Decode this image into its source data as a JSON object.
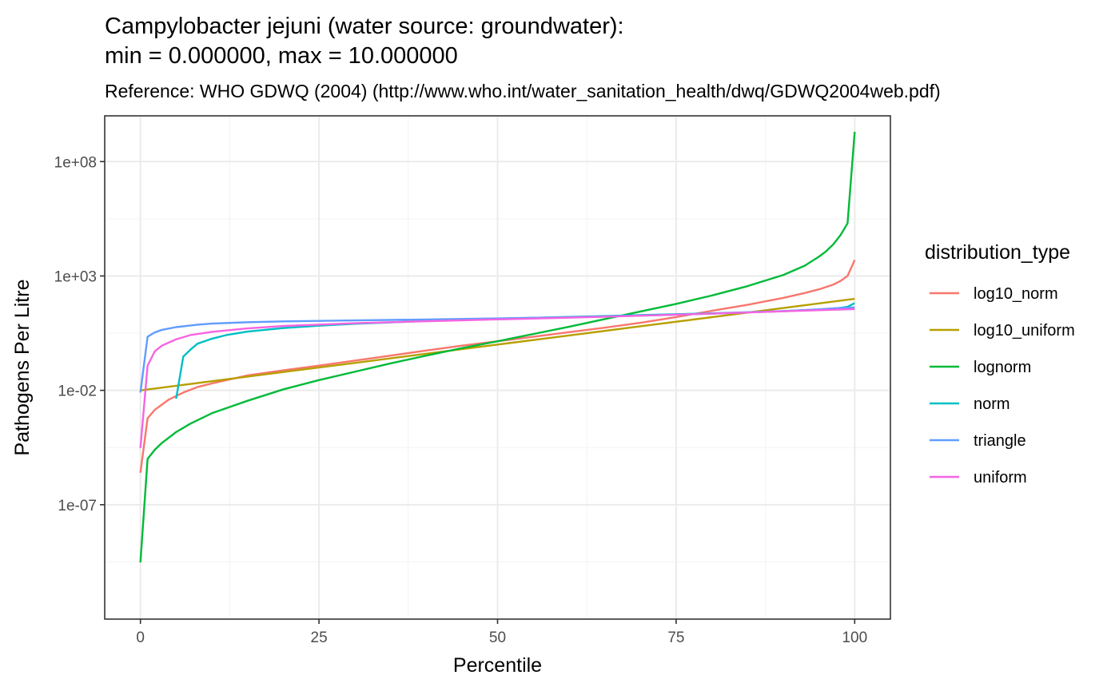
{
  "chart_data": {
    "type": "line",
    "title_lines": [
      "Campylobacter jejuni (water source: groundwater):",
      "min = 0.000000, max = 10.000000"
    ],
    "subtitle": "Reference: WHO GDWQ (2004) (http://www.who.int/water_sanitation_health/dwq/GDWQ2004web.pdf)",
    "xlabel": "Percentile",
    "ylabel": "Pathogens Per Litre",
    "x_scale": "linear",
    "y_scale": "log10",
    "xlim": [
      -5,
      105
    ],
    "ylim": [
      1e-12,
      10000000000.0
    ],
    "x_ticks": [
      {
        "value": 0,
        "label": "0"
      },
      {
        "value": 25,
        "label": "25"
      },
      {
        "value": 50,
        "label": "50"
      },
      {
        "value": 75,
        "label": "75"
      },
      {
        "value": 100,
        "label": "100"
      }
    ],
    "y_ticks": [
      {
        "value": 1e-07,
        "label": "1e-07"
      },
      {
        "value": 0.01,
        "label": "1e-02"
      },
      {
        "value": 1000.0,
        "label": "1e+03"
      },
      {
        "value": 100000000.0,
        "label": "1e+08"
      }
    ],
    "grid": true,
    "legend": {
      "title": "distribution_type",
      "position": "right"
    },
    "series": [
      {
        "name": "log10_norm",
        "color": "#F8766D",
        "points": [
          [
            0,
            2.5e-06
          ],
          [
            1,
            0.0006
          ],
          [
            2,
            0.0014
          ],
          [
            4,
            0.004
          ],
          [
            6,
            0.008
          ],
          [
            8,
            0.014
          ],
          [
            10,
            0.02
          ],
          [
            15,
            0.045
          ],
          [
            20,
            0.075
          ],
          [
            25,
            0.12
          ],
          [
            30,
            0.2
          ],
          [
            35,
            0.33
          ],
          [
            40,
            0.55
          ],
          [
            45,
            0.9
          ],
          [
            50,
            1.4
          ],
          [
            55,
            2.2
          ],
          [
            60,
            3.5
          ],
          [
            65,
            5.5
          ],
          [
            70,
            9
          ],
          [
            75,
            16
          ],
          [
            80,
            30
          ],
          [
            85,
            55
          ],
          [
            90,
            110
          ],
          [
            93,
            180
          ],
          [
            95,
            260
          ],
          [
            96,
            330
          ],
          [
            97,
            420
          ],
          [
            98,
            600
          ],
          [
            99,
            1000
          ],
          [
            100,
            5000
          ]
        ]
      },
      {
        "name": "log10_uniform",
        "color": "#B79F00",
        "points": [
          [
            0,
            0.01
          ],
          [
            5,
            0.0158
          ],
          [
            10,
            0.0251
          ],
          [
            20,
            0.0631
          ],
          [
            30,
            0.158
          ],
          [
            40,
            0.398
          ],
          [
            50,
            1
          ],
          [
            60,
            2.51
          ],
          [
            70,
            6.31
          ],
          [
            80,
            15.8
          ],
          [
            90,
            39.8
          ],
          [
            95,
            63.1
          ],
          [
            100,
            100
          ]
        ]
      },
      {
        "name": "lognorm",
        "color": "#00BA38",
        "points": [
          [
            0,
            3e-10
          ],
          [
            1,
            1e-05
          ],
          [
            2,
            2.5e-05
          ],
          [
            3,
            5e-05
          ],
          [
            5,
            0.00015
          ],
          [
            7,
            0.00035
          ],
          [
            10,
            0.001
          ],
          [
            15,
            0.0035
          ],
          [
            20,
            0.011
          ],
          [
            25,
            0.028
          ],
          [
            30,
            0.065
          ],
          [
            35,
            0.15
          ],
          [
            40,
            0.33
          ],
          [
            45,
            0.7
          ],
          [
            50,
            1.4
          ],
          [
            55,
            2.9
          ],
          [
            60,
            6
          ],
          [
            65,
            13
          ],
          [
            70,
            28
          ],
          [
            75,
            60
          ],
          [
            80,
            140
          ],
          [
            85,
            360
          ],
          [
            90,
            1100
          ],
          [
            93,
            2800
          ],
          [
            95,
            7000
          ],
          [
            96,
            12000
          ],
          [
            97,
            24000
          ],
          [
            98,
            60000
          ],
          [
            99,
            200000
          ],
          [
            100,
            2000000000.0
          ]
        ]
      },
      {
        "name": "norm",
        "color": "#00BFC4",
        "points": [
          [
            5,
            0.0043
          ],
          [
            6,
            0.3
          ],
          [
            7,
            0.6
          ],
          [
            8,
            1.1
          ],
          [
            10,
            1.8
          ],
          [
            12,
            2.6
          ],
          [
            15,
            3.7
          ],
          [
            20,
            5.3
          ],
          [
            25,
            6.7
          ],
          [
            30,
            8.1
          ],
          [
            40,
            10.8
          ],
          [
            50,
            13.4
          ],
          [
            60,
            16.2
          ],
          [
            70,
            19.5
          ],
          [
            80,
            23.4
          ],
          [
            90,
            29
          ],
          [
            95,
            34
          ],
          [
            98,
            40
          ],
          [
            99,
            45
          ],
          [
            100,
            65
          ]
        ]
      },
      {
        "name": "triangle",
        "color": "#619CFF",
        "points": [
          [
            0,
            0.008
          ],
          [
            1,
            2.2
          ],
          [
            2,
            3.4
          ],
          [
            3,
            4.4
          ],
          [
            5,
            5.8
          ],
          [
            8,
            7.4
          ],
          [
            10,
            8.3
          ],
          [
            15,
            9.5
          ],
          [
            20,
            10.3
          ],
          [
            30,
            11.4
          ],
          [
            40,
            12.5
          ],
          [
            50,
            14
          ],
          [
            60,
            15.8
          ],
          [
            70,
            18.4
          ],
          [
            80,
            22.5
          ],
          [
            90,
            29
          ],
          [
            95,
            35
          ],
          [
            98,
            40
          ],
          [
            100,
            42
          ]
        ]
      },
      {
        "name": "uniform",
        "color": "#F564E3",
        "points": [
          [
            0,
            3e-05
          ],
          [
            1,
            0.12
          ],
          [
            2,
            0.5
          ],
          [
            3,
            0.9
          ],
          [
            5,
            1.7
          ],
          [
            7,
            2.6
          ],
          [
            10,
            3.6
          ],
          [
            15,
            5.1
          ],
          [
            20,
            6.5
          ],
          [
            30,
            8.6
          ],
          [
            40,
            10.5
          ],
          [
            50,
            12.6
          ],
          [
            60,
            15
          ],
          [
            70,
            18.3
          ],
          [
            80,
            22.7
          ],
          [
            90,
            28.6
          ],
          [
            95,
            32
          ],
          [
            100,
            35.5
          ]
        ]
      }
    ]
  }
}
